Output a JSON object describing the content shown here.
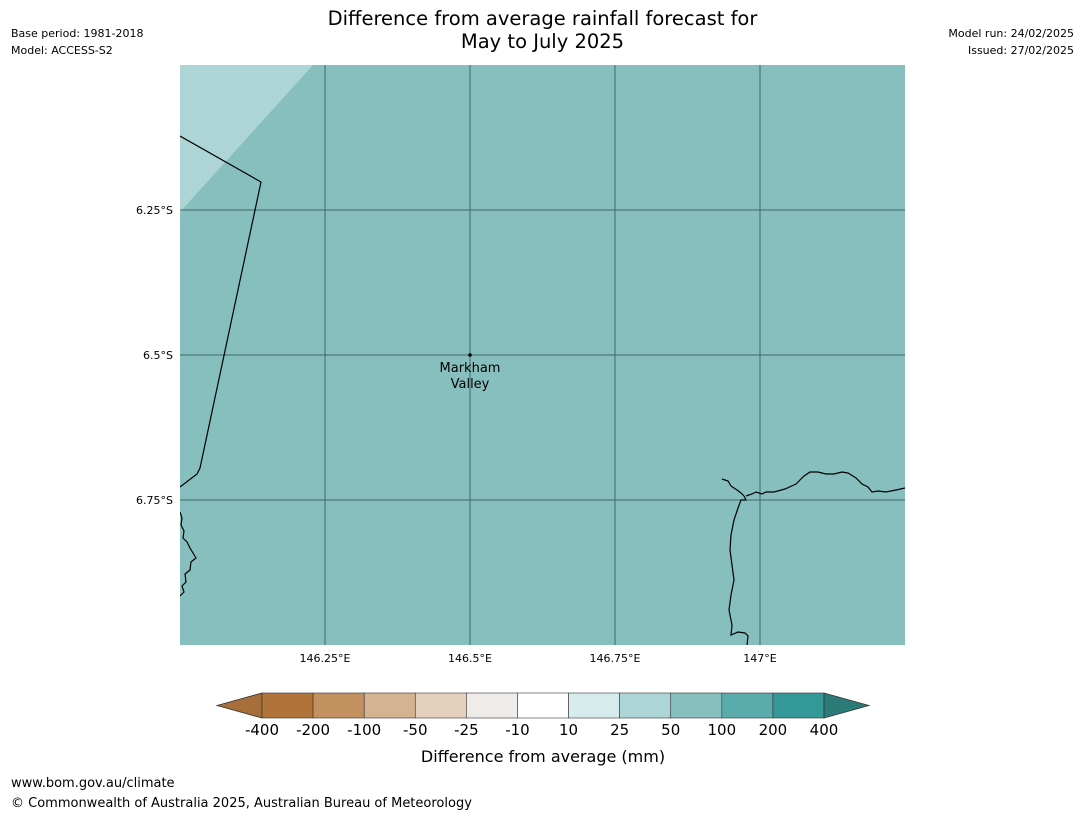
{
  "header": {
    "base_period": "Base period: 1981-2018",
    "model": "Model: ACCESS-S2",
    "title_line1": "Difference from average rainfall forecast for",
    "title_line2": "May to July 2025",
    "model_run": "Model run: 24/02/2025",
    "issued": "Issued: 27/02/2025"
  },
  "map": {
    "longitude_ticks": [
      "146.25°E",
      "146.5°E",
      "146.75°E",
      "147°E"
    ],
    "latitude_ticks": [
      "6.25°S",
      "6.5°S",
      "6.75°S"
    ],
    "place_label_line1": "Markham",
    "place_label_line2": "Valley",
    "background_color": "#87bfbf",
    "upper_left_color": "#aed5d6"
  },
  "colorbar": {
    "tick_labels": [
      "-400",
      "-200",
      "-100",
      "-50",
      "-25",
      "-10",
      "10",
      "25",
      "50",
      "100",
      "200",
      "400"
    ],
    "colors": [
      "#a66e3a",
      "#b0733a",
      "#c2915f",
      "#d4b392",
      "#e5d0bd",
      "#efebe8",
      "#ffffff",
      "#d6ebeb",
      "#aed5d6",
      "#87bfbf",
      "#5aabab",
      "#339897",
      "#2b7b78"
    ],
    "label": "Difference from average (mm)"
  },
  "footer": {
    "url": "www.bom.gov.au/climate",
    "copyright": "© Commonwealth of Australia 2025, Australian Bureau of Meteorology"
  }
}
